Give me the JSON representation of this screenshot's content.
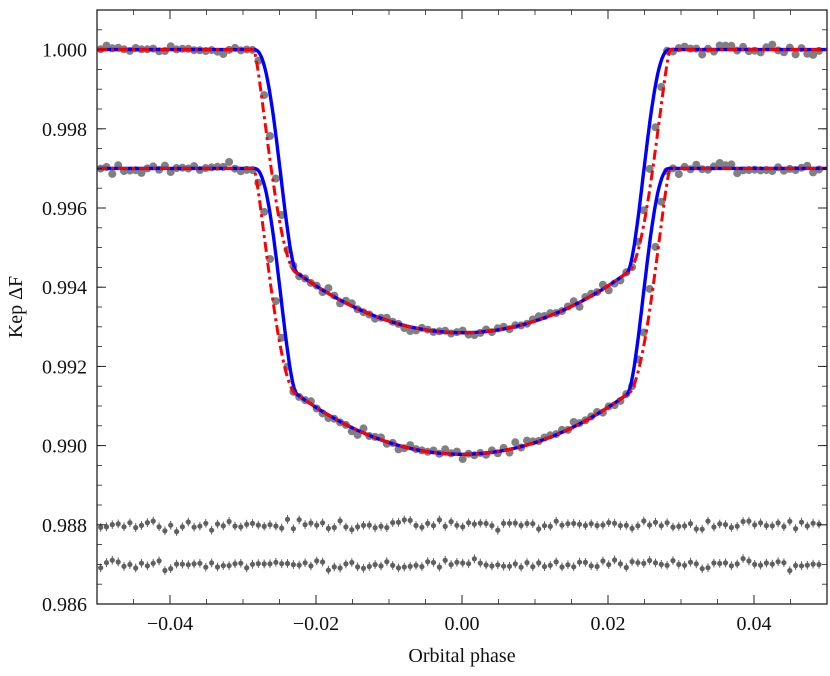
{
  "chart_data": {
    "type": "scatter",
    "title": "",
    "xlabel": "Orbital phase",
    "ylabel": "Kep ΔF",
    "xlim": [
      -0.05,
      0.05
    ],
    "ylim": [
      0.986,
      1.001
    ],
    "x_ticks": [
      -0.04,
      -0.02,
      0.0,
      0.02,
      0.04
    ],
    "x_tick_labels": [
      "−0.04",
      "−0.02",
      "0.00",
      "0.02",
      "0.04"
    ],
    "y_ticks": [
      0.986,
      0.988,
      0.99,
      0.992,
      0.994,
      0.996,
      0.998,
      1.0
    ],
    "y_tick_labels": [
      "0.986",
      "0.988",
      "0.990",
      "0.992",
      "0.994",
      "0.996",
      "0.998",
      "1.000"
    ],
    "grid": false,
    "legend": "none",
    "colors": {
      "points": "#808080",
      "model_solid": "#0000ff",
      "model_dashed": "#ff0000",
      "residuals": "#606060"
    },
    "series": [
      {
        "kind": "transit-points",
        "baseline": 1.0,
        "depth": 0.00715,
        "ingress_start": 0.0285,
        "ingress_end": 0.0225,
        "curvature": 0.0015
      },
      {
        "kind": "transit-points",
        "baseline": 0.997,
        "depth": 0.00722,
        "ingress_start": 0.0285,
        "ingress_end": 0.0225,
        "curvature": 0.0015
      },
      {
        "kind": "model-solid",
        "offsets": [
          1.0,
          0.997
        ]
      },
      {
        "kind": "model-dashed",
        "offsets": [
          1.0,
          0.997
        ]
      },
      {
        "kind": "residuals",
        "baseline": 0.988
      },
      {
        "kind": "residuals",
        "baseline": 0.987
      }
    ]
  }
}
